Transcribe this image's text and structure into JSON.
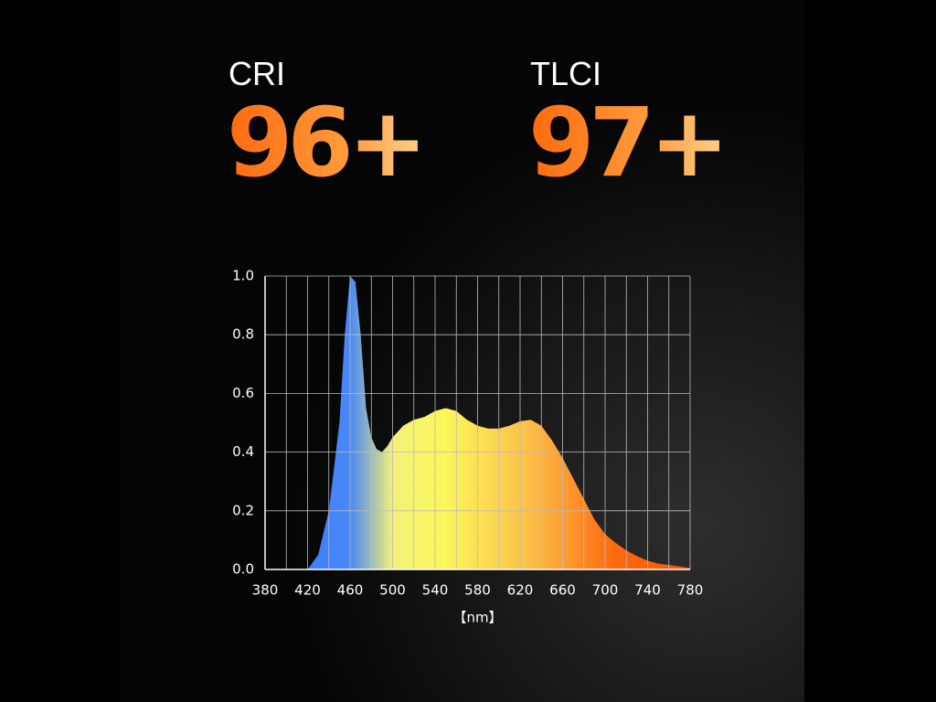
{
  "stats": [
    {
      "label": "CRI",
      "value": "96+"
    },
    {
      "label": "TLCI",
      "value": "97+"
    }
  ],
  "chart_data": {
    "type": "area",
    "x_label": "【nm】",
    "x": [
      380,
      390,
      400,
      410,
      420,
      430,
      440,
      450,
      455,
      460,
      465,
      470,
      475,
      480,
      485,
      490,
      495,
      500,
      510,
      520,
      530,
      540,
      550,
      560,
      570,
      580,
      590,
      600,
      610,
      620,
      630,
      640,
      650,
      660,
      670,
      680,
      690,
      700,
      710,
      720,
      730,
      740,
      750,
      760,
      770,
      780
    ],
    "values": [
      0,
      0,
      0,
      0,
      0,
      0.05,
      0.2,
      0.5,
      0.8,
      1.0,
      0.98,
      0.8,
      0.55,
      0.45,
      0.41,
      0.4,
      0.42,
      0.45,
      0.49,
      0.51,
      0.52,
      0.54,
      0.55,
      0.54,
      0.51,
      0.49,
      0.48,
      0.48,
      0.49,
      0.505,
      0.51,
      0.49,
      0.44,
      0.38,
      0.31,
      0.24,
      0.17,
      0.12,
      0.09,
      0.065,
      0.045,
      0.03,
      0.02,
      0.015,
      0.01,
      0.005
    ],
    "xlim": [
      380,
      780
    ],
    "xticks": [
      380,
      420,
      460,
      500,
      540,
      580,
      620,
      660,
      700,
      740,
      780
    ],
    "x_minor_ticks": [
      400,
      440,
      480,
      520,
      560,
      600,
      640,
      680,
      720,
      760
    ],
    "ylim": [
      0,
      1
    ],
    "yticks": [
      {
        "value": 0,
        "label": "0.0"
      },
      0.2,
      0.4,
      0.6,
      0.8,
      {
        "value": 1,
        "label": "1.0"
      }
    ],
    "grid": true
  }
}
